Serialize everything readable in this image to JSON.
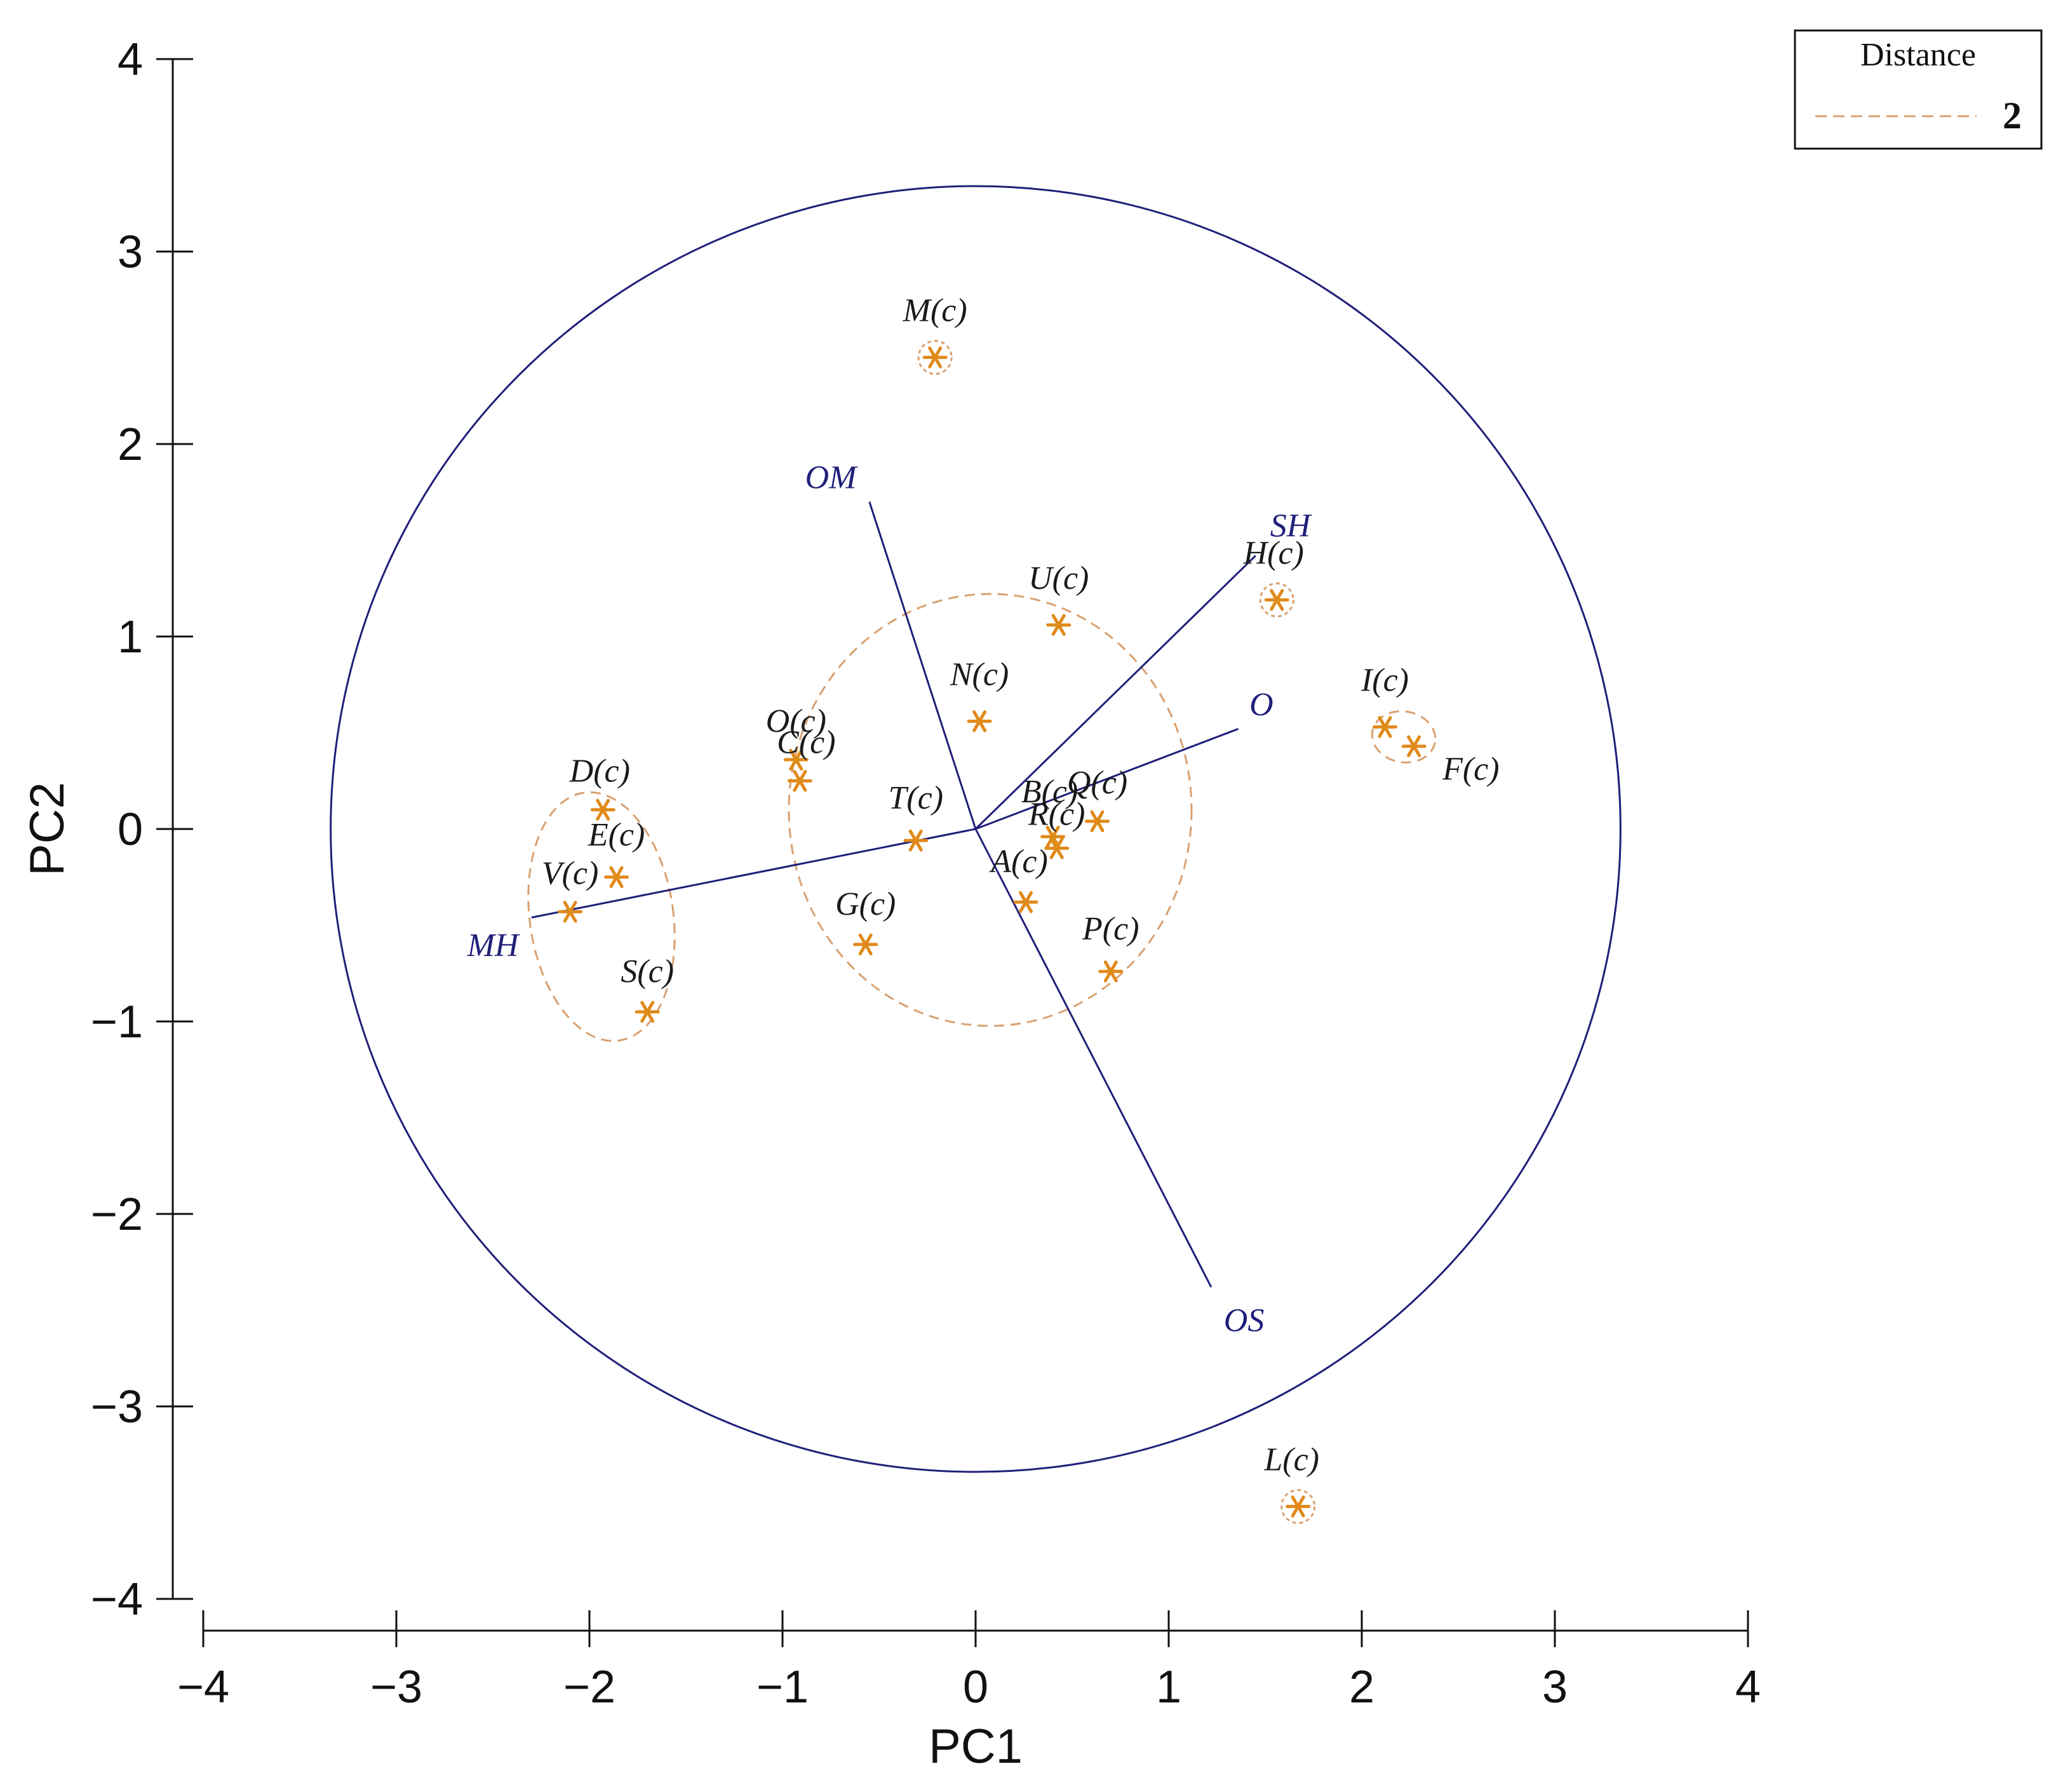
{
  "chart_data": {
    "type": "scatter",
    "title": "",
    "xlabel": "PC1",
    "ylabel": "PC2",
    "xlim": [
      -4,
      4
    ],
    "ylim": [
      -4,
      4
    ],
    "xticks": [
      "−4",
      "−3",
      "−2",
      "−1",
      "0",
      "1",
      "2",
      "3",
      "4"
    ],
    "yticks": [
      "4",
      "3",
      "2",
      "1",
      "0",
      "−1",
      "−2",
      "−3",
      "−4"
    ],
    "grid": false,
    "legend": {
      "title": "Distance",
      "value": "2",
      "placement": "top-right"
    },
    "colors": {
      "points": "#e08a1a",
      "clusters": "#d9a070",
      "vectors": "#1f1f7a",
      "axes": "#111111"
    },
    "correlation_circle": {
      "center": [
        0,
        0
      ],
      "radius": 3.34
    },
    "points": [
      {
        "label": "M(c)",
        "x": -0.21,
        "y": 2.45,
        "circled": true
      },
      {
        "label": "H(c)",
        "x": 1.56,
        "y": 1.19,
        "circled": true
      },
      {
        "label": "U(c)",
        "x": 0.43,
        "y": 1.06
      },
      {
        "label": "N(c)",
        "x": 0.02,
        "y": 0.56
      },
      {
        "label": "O(c)",
        "x": -0.93,
        "y": 0.36
      },
      {
        "label": "C(c)",
        "x": -0.91,
        "y": 0.25
      },
      {
        "label": "I(c)",
        "x": 2.12,
        "y": 0.53
      },
      {
        "label": "F(c)",
        "x": 2.27,
        "y": 0.43
      },
      {
        "label": "D(c)",
        "x": -1.93,
        "y": 0.1
      },
      {
        "label": "E(c)",
        "x": -1.86,
        "y": -0.25
      },
      {
        "label": "V(c)",
        "x": -2.1,
        "y": -0.43
      },
      {
        "label": "S(c)",
        "x": -1.7,
        "y": -0.95
      },
      {
        "label": "T(c)",
        "x": -0.31,
        "y": -0.06
      },
      {
        "label": "B(c)",
        "x": 0.4,
        "y": -0.04
      },
      {
        "label": "R(c)",
        "x": 0.42,
        "y": -0.1
      },
      {
        "label": "Q(c)",
        "x": 0.63,
        "y": 0.04
      },
      {
        "label": "A(c)",
        "x": 0.26,
        "y": -0.38
      },
      {
        "label": "G(c)",
        "x": -0.57,
        "y": -0.6
      },
      {
        "label": "P(c)",
        "x": 0.7,
        "y": -0.74
      },
      {
        "label": "L(c)",
        "x": 1.67,
        "y": -3.52,
        "circled": true
      }
    ],
    "vectors": [
      {
        "label": "OM",
        "x": -0.55,
        "y": 1.7
      },
      {
        "label": "SH",
        "x": 1.45,
        "y": 1.42
      },
      {
        "label": "O",
        "x": 1.36,
        "y": 0.52
      },
      {
        "label": "MH",
        "x": -2.3,
        "y": -0.46
      },
      {
        "label": "OS",
        "x": 1.22,
        "y": -2.38
      }
    ]
  }
}
